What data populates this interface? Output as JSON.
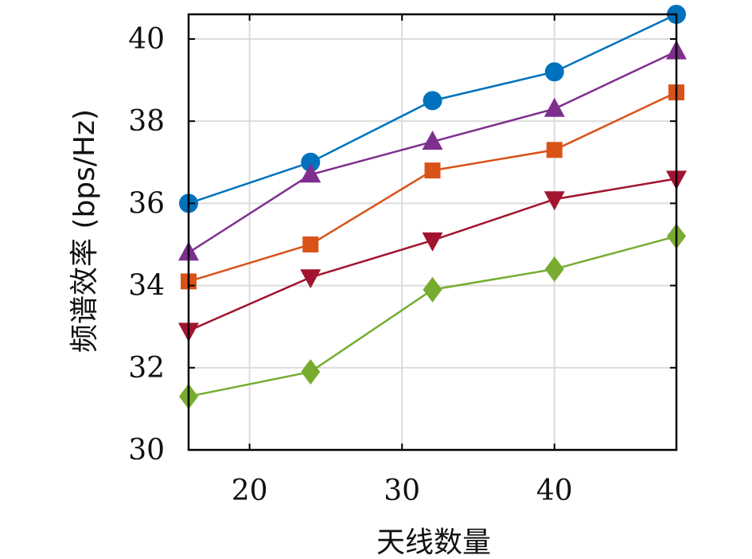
{
  "chart_data": {
    "type": "line",
    "xlabel": "天线数量",
    "ylabel": "频谱效率 (bps/Hz)",
    "xlim": [
      16,
      48
    ],
    "ylim": [
      30,
      40.6
    ],
    "x": [
      16,
      24,
      32,
      40,
      48
    ],
    "xticks": [
      20,
      30,
      40
    ],
    "yticks": [
      30,
      32,
      34,
      36,
      38,
      40
    ],
    "grid": true,
    "series": [
      {
        "color": "#0072BD",
        "marker": "circle",
        "values": [
          36.0,
          37.0,
          38.5,
          39.2,
          40.6
        ]
      },
      {
        "color": "#7E2F8E",
        "marker": "triangle-up",
        "values": [
          34.8,
          36.7,
          37.5,
          38.3,
          39.7
        ]
      },
      {
        "color": "#D95319",
        "marker": "square",
        "values": [
          34.1,
          35.0,
          36.8,
          37.3,
          38.7
        ]
      },
      {
        "color": "#A2142F",
        "marker": "triangle-down",
        "values": [
          32.9,
          34.2,
          35.1,
          36.1,
          36.6
        ]
      },
      {
        "color": "#77AC30",
        "marker": "diamond",
        "values": [
          31.3,
          31.9,
          33.9,
          34.4,
          35.2
        ]
      }
    ]
  }
}
